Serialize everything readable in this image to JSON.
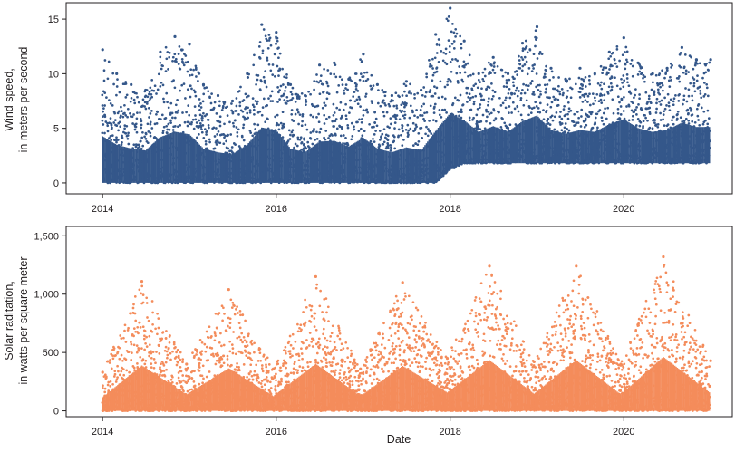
{
  "chart_data": [
    {
      "type": "scatter",
      "ylabel_lines": [
        "Wind speed,",
        "in meters per second"
      ],
      "xlabel": "",
      "x_ticks": [
        "2014",
        "2016",
        "2018",
        "2020"
      ],
      "y_ticks": [
        "0",
        "5",
        "10",
        "15"
      ],
      "xlim": [
        "2013-08-01",
        "2021-04-01"
      ],
      "ylim": [
        -1,
        16.5
      ],
      "grid": false,
      "color": "#34578a",
      "series": [
        {
          "x": [
            "2014-01-01",
            "2014-03-01",
            "2014-05-01",
            "2014-07-01",
            "2014-09-01",
            "2014-11-01",
            "2015-01-01",
            "2015-03-01",
            "2015-05-01",
            "2015-07-01",
            "2015-09-01",
            "2015-11-01",
            "2016-01-01",
            "2016-03-01",
            "2016-05-01",
            "2016-07-01",
            "2016-09-01",
            "2016-11-01",
            "2017-01-01",
            "2017-03-01",
            "2017-05-01",
            "2017-07-01",
            "2017-09-01",
            "2017-11-01",
            "2018-01-01",
            "2018-03-01",
            "2018-05-01",
            "2018-07-01",
            "2018-09-01",
            "2018-11-01",
            "2019-01-01",
            "2019-03-01",
            "2019-05-01",
            "2019-07-01",
            "2019-09-01",
            "2019-11-01",
            "2020-01-01",
            "2020-03-01",
            "2020-05-01",
            "2020-07-01",
            "2020-09-01",
            "2020-11-01",
            "2020-12-31"
          ],
          "y_min": [
            0,
            0,
            0,
            0,
            0,
            0,
            0,
            0,
            0,
            0,
            0,
            0,
            0,
            0,
            0,
            0,
            0,
            0,
            0,
            0,
            0,
            0,
            0,
            0,
            1.2,
            1.8,
            1.8,
            1.8,
            1.8,
            1.8,
            1.8,
            1.8,
            1.8,
            1.8,
            1.8,
            1.8,
            1.8,
            1.8,
            1.8,
            1.8,
            1.8,
            1.8,
            1.8
          ],
          "y_max": [
            12.2,
            10,
            9,
            8.5,
            12,
            13.4,
            12.7,
            9,
            8,
            7.5,
            10,
            14.5,
            13.8,
            9,
            8,
            10.8,
            11,
            9.5,
            11.8,
            9,
            8,
            9.3,
            8.5,
            13.6,
            16,
            13,
            10,
            11.5,
            10,
            12.8,
            14.3,
            10.5,
            9.5,
            10.5,
            10,
            12,
            13.3,
            11,
            10,
            10.5,
            12.4,
            11.3,
            11.3
          ]
        }
      ]
    },
    {
      "type": "scatter",
      "ylabel_lines": [
        "Solar raditation,",
        "in watts per square meter"
      ],
      "xlabel": "Date",
      "x_ticks": [
        "2014",
        "2016",
        "2018",
        "2020"
      ],
      "y_ticks": [
        "0",
        "500",
        "1,000",
        "1,500"
      ],
      "xlim": [
        "2013-08-01",
        "2021-04-01"
      ],
      "ylim": [
        -50,
        1580
      ],
      "grid": false,
      "color": "#f48c5b",
      "series": [
        {
          "x": [
            "2014-01-01",
            "2014-06-15",
            "2014-12-20",
            "2015-06-15",
            "2015-12-20",
            "2016-06-15",
            "2016-12-20",
            "2017-06-15",
            "2017-12-20",
            "2018-06-15",
            "2018-12-20",
            "2019-06-15",
            "2019-12-20",
            "2020-06-15",
            "2020-12-31"
          ],
          "y_min": [
            0,
            0,
            0,
            0,
            0,
            0,
            0,
            0,
            0,
            0,
            0,
            0,
            0,
            0,
            0
          ],
          "y_max": [
            330,
            1110,
            400,
            1040,
            360,
            1150,
            360,
            1100,
            450,
            1240,
            420,
            1240,
            400,
            1320,
            430
          ]
        }
      ]
    }
  ]
}
